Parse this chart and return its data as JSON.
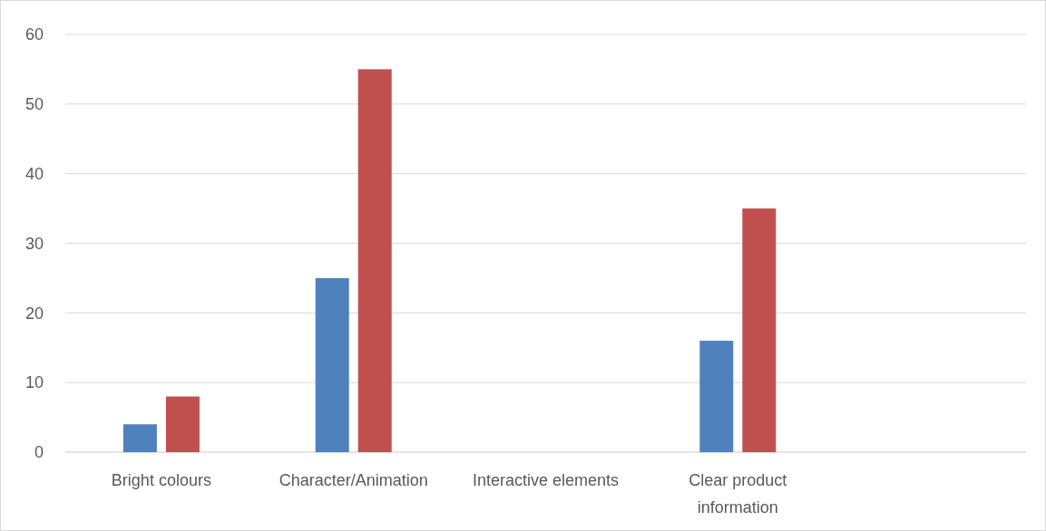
{
  "chart_data": {
    "type": "bar",
    "categories": [
      "Bright colours",
      "Character/Animation",
      "Interactive elements",
      "Clear product information",
      null
    ],
    "series": [
      {
        "color": "#4f81bd",
        "values": [
          4,
          25,
          null,
          16,
          null
        ]
      },
      {
        "color": "#c0504d",
        "values": [
          8,
          55,
          null,
          35,
          null
        ]
      }
    ],
    "ylim": [
      0,
      60
    ],
    "yticks": [
      0,
      10,
      20,
      30,
      40,
      50,
      60
    ],
    "grid": "y"
  }
}
